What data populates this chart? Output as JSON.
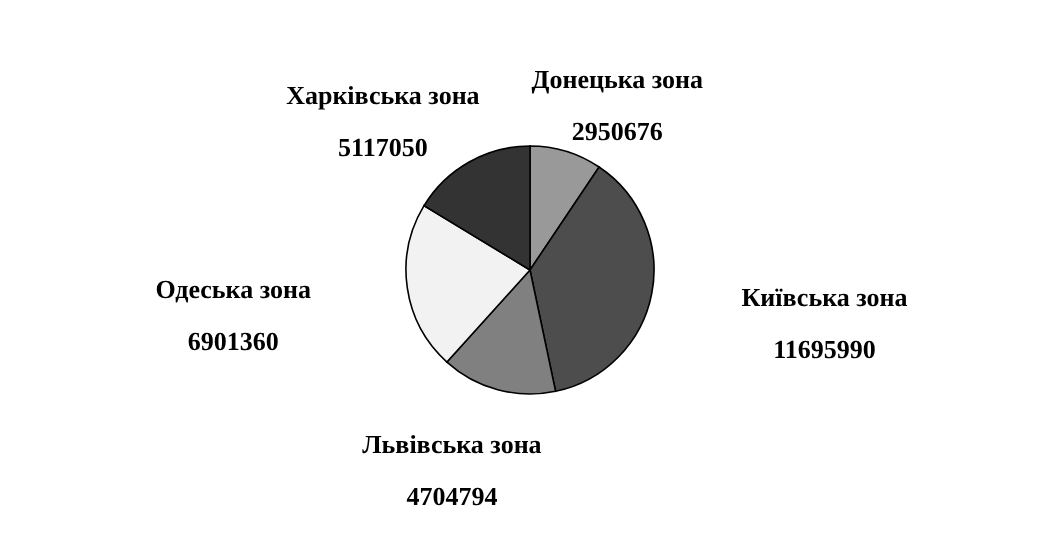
{
  "chart_data": {
    "type": "pie",
    "categories": [
      "Донецька зона",
      "Київська зона",
      "Львівська зона",
      "Одеська зона",
      "Харківська зона"
    ],
    "values": [
      2950676,
      11695990,
      4704794,
      6901360,
      5117050
    ],
    "colors": [
      "#999999",
      "#4d4d4d",
      "#808080",
      "#f2f2f2",
      "#333333"
    ],
    "data_labels": true
  }
}
